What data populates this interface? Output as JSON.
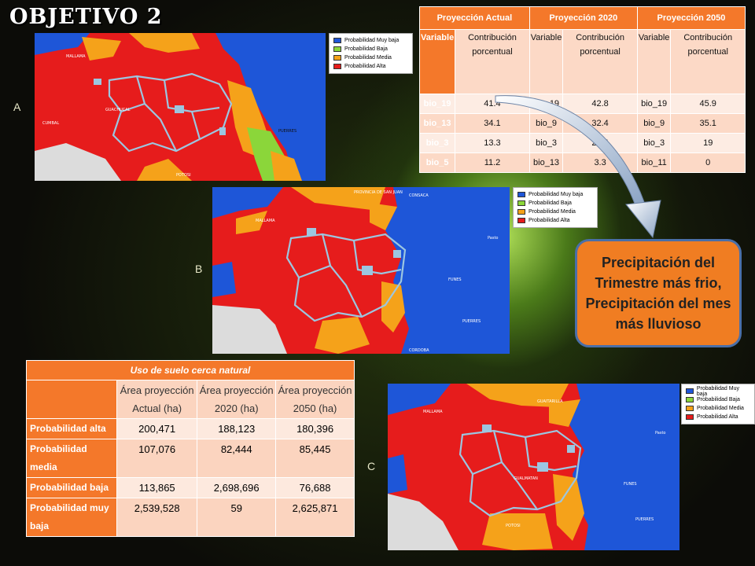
{
  "title": "OBJETIVO 2",
  "labels": {
    "a": "A",
    "b": "B",
    "c": "C"
  },
  "legend": [
    {
      "label": "Probabilidad Muy baja",
      "color": "#1e56d8"
    },
    {
      "label": "Probabilidad Baja",
      "color": "#8bd63a"
    },
    {
      "label": "Probabilidad Media",
      "color": "#f5a21a"
    },
    {
      "label": "Probabilidad Alta",
      "color": "#e61c1c"
    }
  ],
  "map_places": {
    "mallama": "MALLAMA",
    "ricaurte": "RICAURTE",
    "imues": "IMUES",
    "guachucal": "GUACHUCAL",
    "cumbal": "CUMBAL",
    "cuaspud": "CUASPUD (Carlosama)",
    "ipiales": "IPIALES",
    "potosi": "POTOSI",
    "pupiales": "PUPIALES",
    "gualmatan": "GUALMATAN",
    "contadero": "CONTADERO",
    "iles": "ILES",
    "sapuyes": "SAPUYES",
    "funes": "FUNES",
    "pasto": "Pasto",
    "cordoba": "CORDOBA",
    "puerres": "PUERRES",
    "guaitarilla": "GUAITARILLA",
    "provincia": "PROVINCIA DE SAN JUAN",
    "santacruz": "SANTA CRUZ (Guachaves)",
    "consaca": "CONSACA",
    "ospina": "OSPINA",
    "yacuanquer": "YACUANQUER",
    "tangua": "TANGUA"
  },
  "top_table": {
    "headers": [
      "Proyección Actual",
      "Proyección 2020",
      "Proyección 2050"
    ],
    "sub_headers": [
      "Variable",
      "Contribución porcentual",
      "Variable",
      "Contribución porcentual",
      "Variable",
      "Contribución porcentual"
    ],
    "rows": [
      [
        "bio_19",
        "41.4",
        "bio_19",
        "42.8",
        "bio_19",
        "45.9"
      ],
      [
        "bio_13",
        "34.1",
        "bio_9",
        "32.4",
        "bio_9",
        "35.1"
      ],
      [
        "bio_3",
        "13.3",
        "bio_3",
        "21.4",
        "bio_3",
        "19"
      ],
      [
        "bio_5",
        "11.2",
        "bio_13",
        "3.3",
        "bio_11",
        "0"
      ]
    ]
  },
  "callout": "Precipitación del Trimestre más frio, Precipitación del mes más lluvioso",
  "bottom_table": {
    "caption": "Uso de suelo cerca natural",
    "headers": [
      "",
      "Área proyección Actual (ha)",
      "Área proyección 2020 (ha)",
      "Área proyección 2050 (ha)"
    ],
    "rows": [
      {
        "label": "Probabilidad alta",
        "values": [
          "200,471",
          "188,123",
          "180,396"
        ]
      },
      {
        "label": "Probabilidad media",
        "values": [
          "107,076",
          "82,444",
          "85,445"
        ]
      },
      {
        "label": "Probabilidad baja",
        "values": [
          "113,865",
          "2,698,696",
          "76,688"
        ]
      },
      {
        "label": "Probabilidad muy baja",
        "values": [
          "2,539,528",
          "59",
          "2,625,871"
        ]
      }
    ]
  }
}
